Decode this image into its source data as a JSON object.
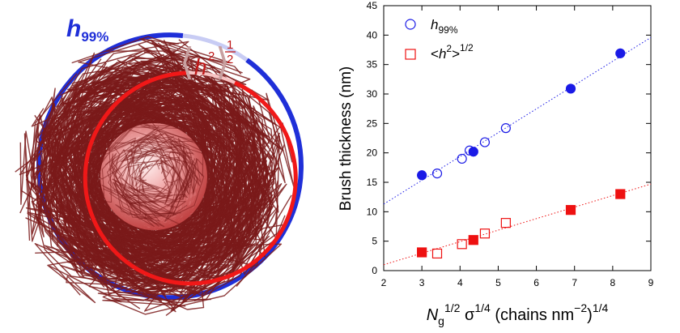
{
  "illustration": {
    "label_h99": "h",
    "label_h99_sub": "99%",
    "label_h2_base": "h",
    "label_h2_sup": "2",
    "label_h2_exp_num": "1",
    "label_h2_exp_den": "2",
    "colors": {
      "outer_ring": "#1f2fd8",
      "inner_ring": "#f01818",
      "chains": "#7a1a1a",
      "core": "#e88080"
    }
  },
  "chart_data": {
    "type": "scatter",
    "xlabel": "",
    "ylabel": "Brush thickness (nm)",
    "xlim": [
      2,
      9
    ],
    "ylim": [
      0,
      45
    ],
    "x_ticks": [
      "2",
      "3",
      "4",
      "5",
      "6",
      "7",
      "8",
      "9"
    ],
    "y_ticks": [
      "0",
      "5",
      "10",
      "15",
      "20",
      "25",
      "30",
      "35",
      "40",
      "45"
    ],
    "xaxis_label_parts": {
      "n": "N",
      "n_sub": "g",
      "n_sup": "1/2",
      "sigma": " σ",
      "sigma_sup": "1/4",
      "rest": " (chains nm",
      "rest_sup": "−2",
      "close": ")",
      "close_sup": "1/4"
    },
    "grid": false,
    "legend_position": "top-left",
    "legend": [
      {
        "label_base": "h",
        "label_sub": "99%",
        "label_sup": "",
        "label_tail": "",
        "color": "#1a1ae6",
        "marker": "circle"
      },
      {
        "label_base": "<h",
        "label_sub": "",
        "label_sup": "2",
        "label_tail": ">",
        "tail_sup": "1/2",
        "color": "#ee1111",
        "marker": "square"
      }
    ],
    "series": [
      {
        "name": "h99%",
        "color": "#1a1ae6",
        "marker": "circle",
        "filled": {
          "x": [
            3.0,
            4.35,
            6.9,
            8.2
          ],
          "y": [
            16.2,
            20.2,
            30.9,
            36.9
          ]
        },
        "open": {
          "x": [
            3.4,
            4.05,
            4.25,
            4.65,
            5.2
          ],
          "y": [
            16.5,
            19.0,
            20.4,
            21.8,
            24.2
          ]
        },
        "fit": {
          "x": [
            2.0,
            9.0
          ],
          "y": [
            11.3,
            39.6
          ]
        }
      },
      {
        "name": "<h2>1/2",
        "color": "#ee1111",
        "marker": "square",
        "filled": {
          "x": [
            3.0,
            4.35,
            6.9,
            8.2
          ],
          "y": [
            3.1,
            5.2,
            10.3,
            13.0
          ]
        },
        "open": {
          "x": [
            3.4,
            4.05,
            4.65,
            5.2
          ],
          "y": [
            2.9,
            4.5,
            6.3,
            8.1
          ]
        },
        "fit": {
          "x": [
            2.0,
            9.0
          ],
          "y": [
            1.0,
            14.7
          ]
        }
      }
    ]
  }
}
